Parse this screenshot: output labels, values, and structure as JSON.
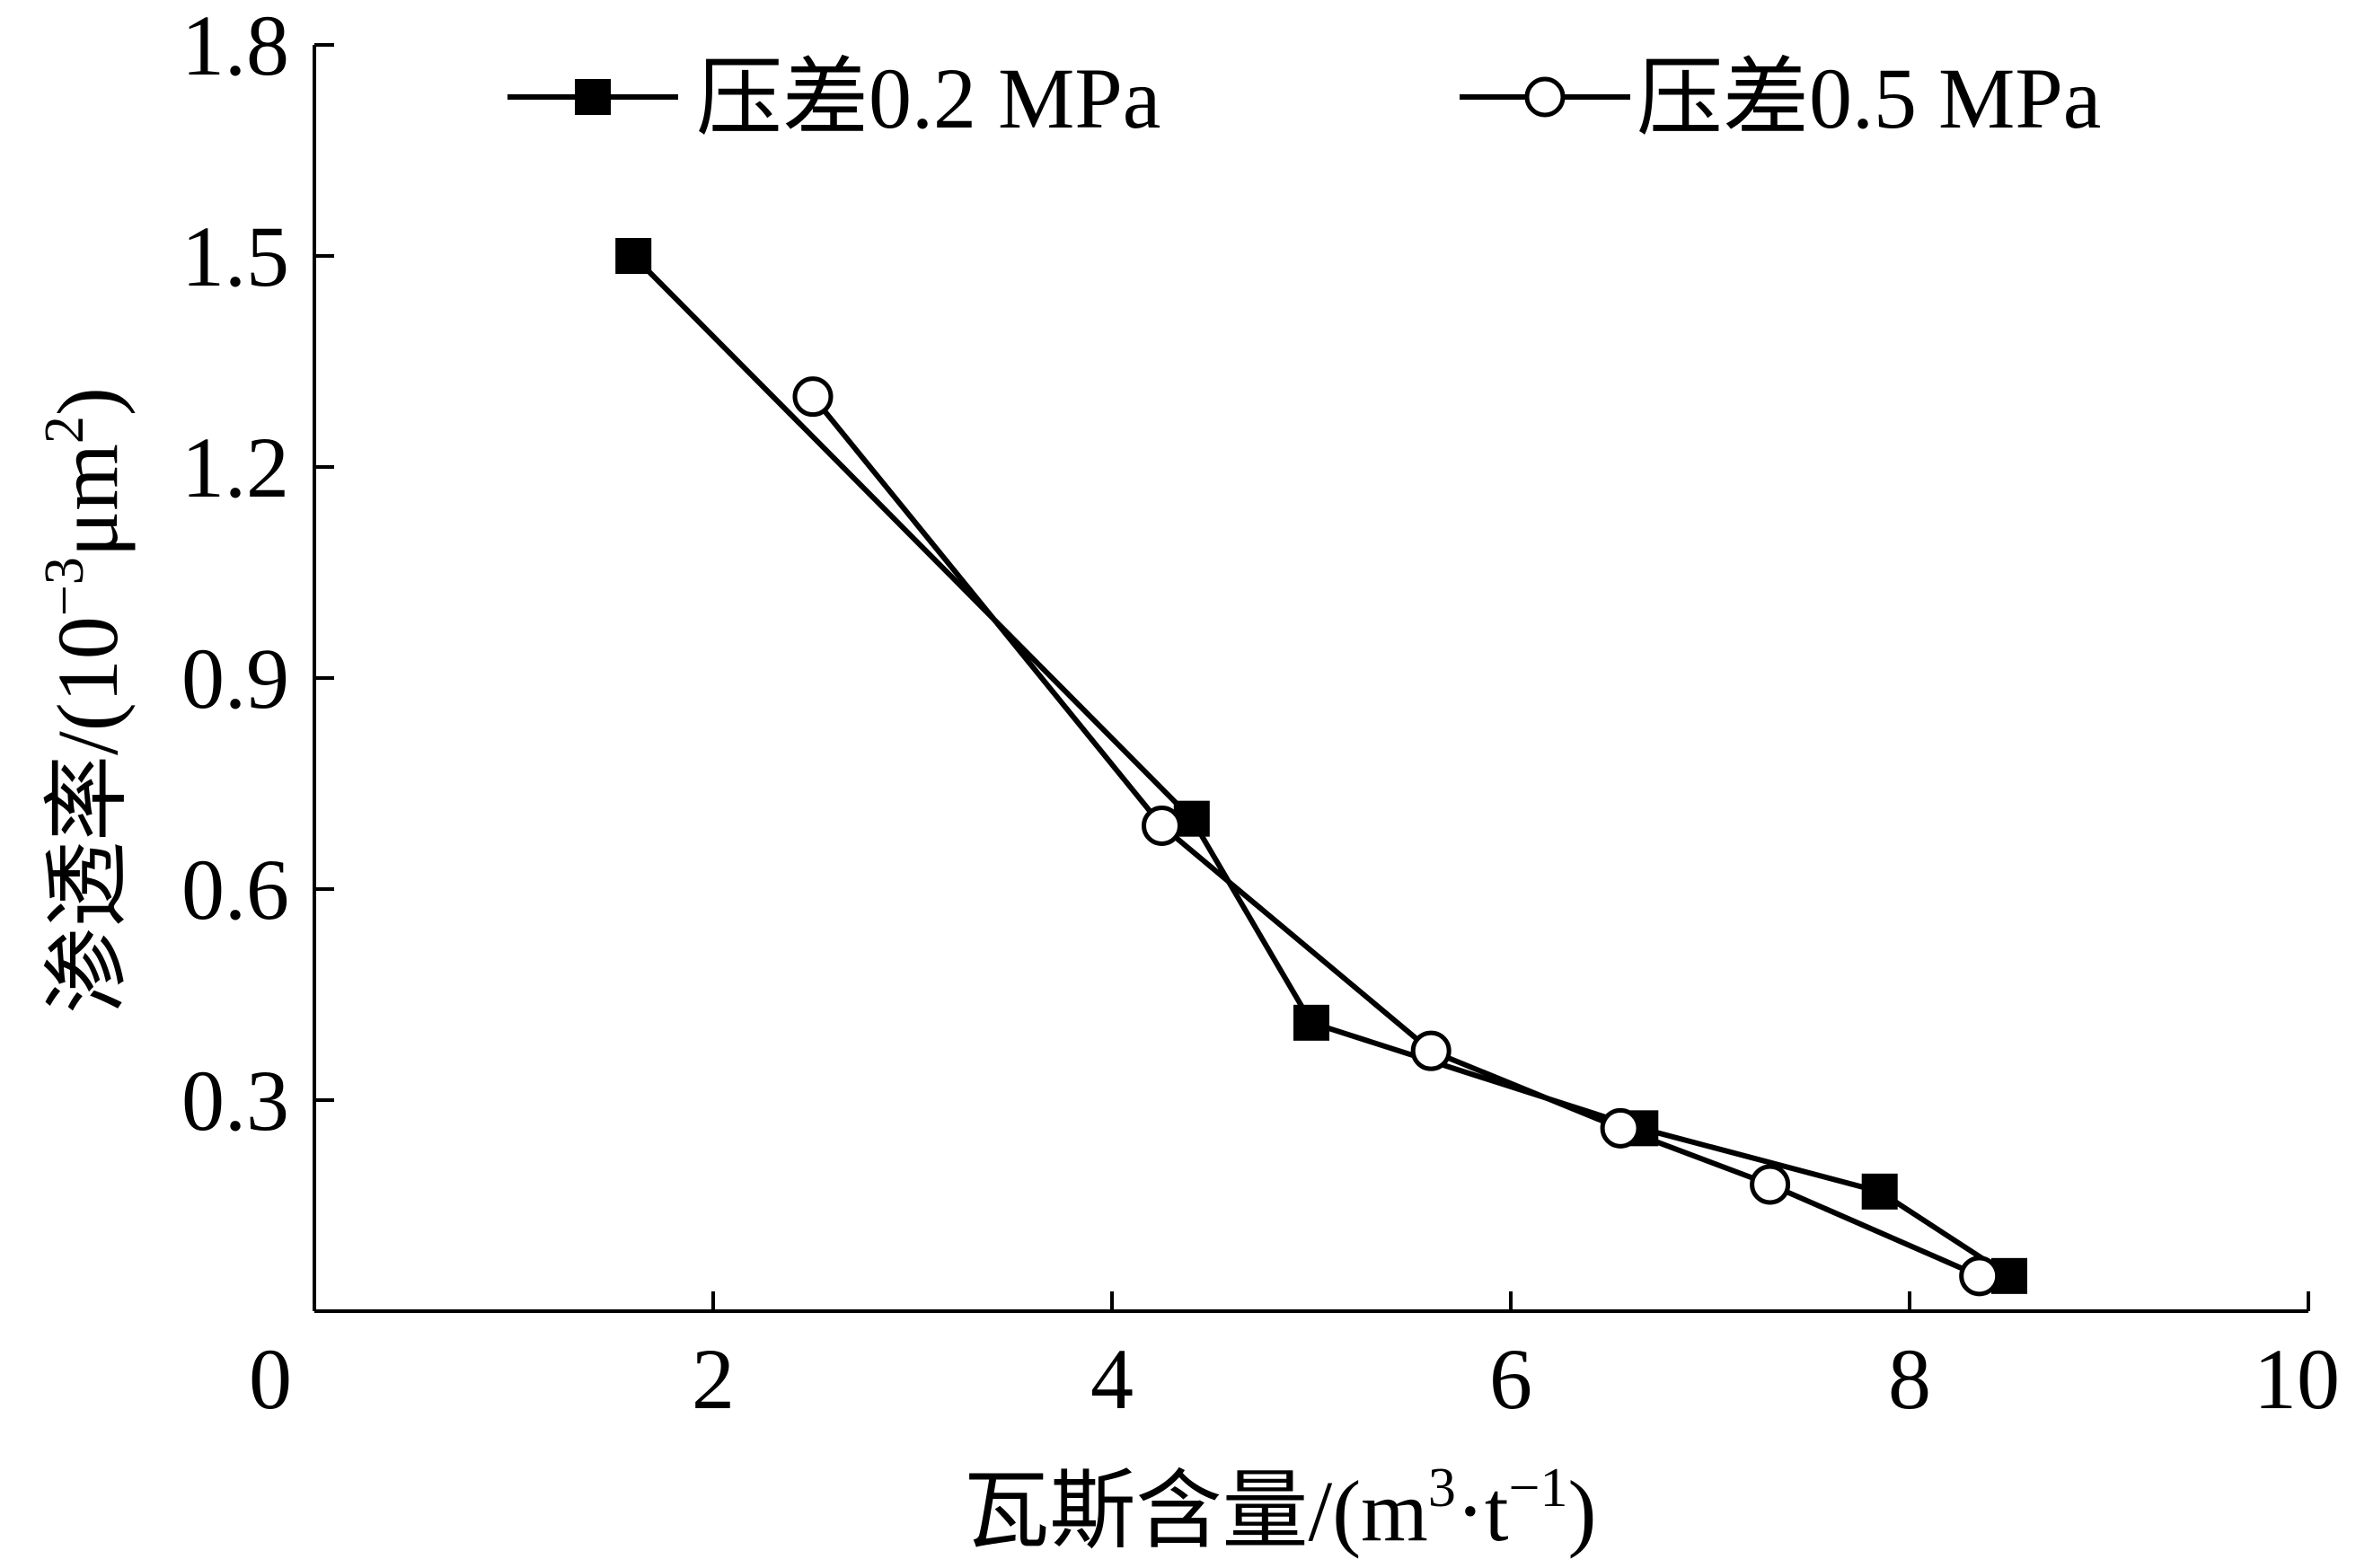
{
  "chart_data": {
    "type": "line",
    "title": "",
    "xlabel_main": "瓦斯含量/(m",
    "xlabel_sup1": "3",
    "xlabel_mid": "·t",
    "xlabel_sup2": "−1",
    "xlabel_end": ")",
    "ylabel_main": "渗透率/(10",
    "ylabel_sup1": "−3",
    "ylabel_mid": "μm",
    "ylabel_sup2": "2",
    "ylabel_end": ")",
    "xlim": [
      0,
      10
    ],
    "ylim": [
      0,
      1.8
    ],
    "x_ticks": [
      "0",
      "2",
      "4",
      "6",
      "8",
      "10"
    ],
    "y_ticks": [
      "0.3",
      "0.6",
      "0.9",
      "1.2",
      "1.5",
      "1.8"
    ],
    "grid": false,
    "legend_position": "top",
    "series": [
      {
        "name": "压差0.2 MPa",
        "marker": "filled-square",
        "color": "#000000",
        "x": [
          1.6,
          4.4,
          5.0,
          6.65,
          7.85,
          8.5
        ],
        "y": [
          1.5,
          0.7,
          0.41,
          0.26,
          0.17,
          0.05
        ]
      },
      {
        "name": "压差0.5 MPa",
        "marker": "open-circle",
        "color": "#000000",
        "x": [
          2.5,
          4.25,
          5.6,
          6.55,
          7.3,
          8.35
        ],
        "y": [
          1.3,
          0.69,
          0.37,
          0.26,
          0.18,
          0.05
        ]
      }
    ]
  }
}
